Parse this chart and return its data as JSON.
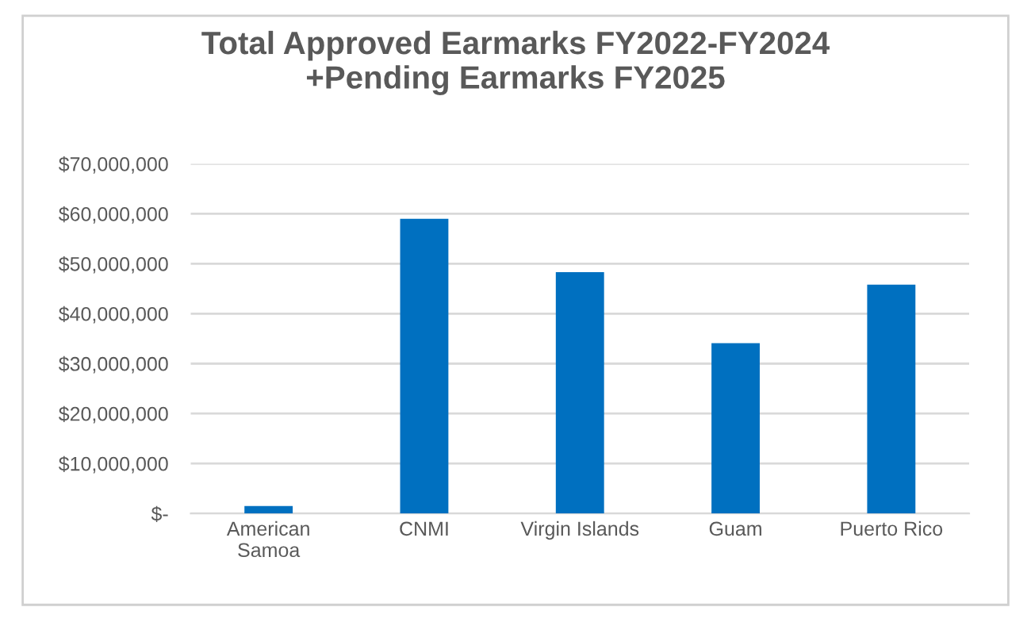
{
  "chart_data": {
    "type": "bar",
    "title": "Total Approved Earmarks FY2022-FY2024\n+Pending Earmarks FY2025",
    "categories": [
      "American\nSamoa",
      "CNMI",
      "Virgin Islands",
      "Guam",
      "Puerto Rico"
    ],
    "values": [
      1500000,
      59000000,
      48300000,
      34100000,
      45800000
    ],
    "color": "#0070c0",
    "ylim": [
      0,
      70000000
    ],
    "yticks": [
      {
        "value": 0,
        "label": "$-"
      },
      {
        "value": 10000000,
        "label": "$10,000,000"
      },
      {
        "value": 20000000,
        "label": "$20,000,000"
      },
      {
        "value": 30000000,
        "label": "$30,000,000"
      },
      {
        "value": 40000000,
        "label": "$40,000,000"
      },
      {
        "value": 50000000,
        "label": "$50,000,000"
      },
      {
        "value": 60000000,
        "label": "$60,000,000"
      },
      {
        "value": 70000000,
        "label": "$70,000,000"
      }
    ],
    "grid": "y",
    "legend": false
  }
}
